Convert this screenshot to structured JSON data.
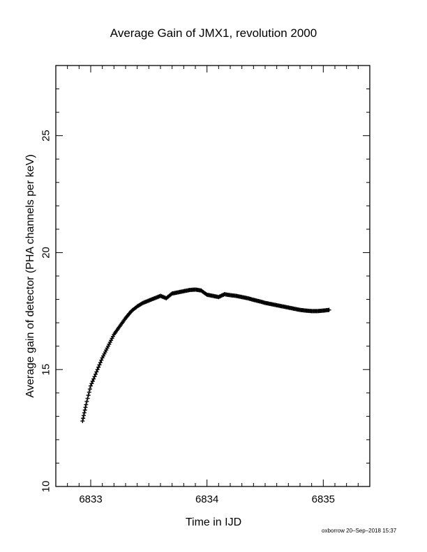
{
  "chart_data": {
    "type": "scatter",
    "title": "Average Gain of JMX1, revolution 2000",
    "xlabel": "Time in IJD",
    "ylabel": "Average gain of detector (PHA channels per keV)",
    "xlim": [
      6832.7,
      6835.4
    ],
    "ylim": [
      10,
      28
    ],
    "xticks": [
      "6833",
      "6834",
      "6835"
    ],
    "yticks": [
      "10",
      "15",
      "20",
      "25"
    ],
    "grid": false,
    "marker": "+",
    "color": "#000000",
    "series": [
      {
        "x": [
          6832.93,
          6832.96,
          6833.0,
          6833.05,
          6833.1,
          6833.15,
          6833.2,
          6833.25,
          6833.3,
          6833.35,
          6833.4,
          6833.45,
          6833.5,
          6833.55,
          6833.6,
          6833.65,
          6833.7,
          6833.75,
          6833.8,
          6833.85,
          6833.9,
          6833.95,
          6834.0,
          6834.05,
          6834.1,
          6834.15,
          6834.2,
          6834.25,
          6834.3,
          6834.35,
          6834.4,
          6834.45,
          6834.5,
          6834.55,
          6834.6,
          6834.65,
          6834.7,
          6834.75,
          6834.8,
          6834.85,
          6834.9,
          6834.95,
          6835.0,
          6835.05
        ],
        "y": [
          12.8,
          13.5,
          14.3,
          14.9,
          15.5,
          16.0,
          16.5,
          16.85,
          17.2,
          17.5,
          17.7,
          17.85,
          17.95,
          18.05,
          18.15,
          18.05,
          18.25,
          18.3,
          18.35,
          18.4,
          18.42,
          18.38,
          18.2,
          18.15,
          18.1,
          18.22,
          18.18,
          18.15,
          18.1,
          18.05,
          17.98,
          17.92,
          17.85,
          17.8,
          17.75,
          17.7,
          17.65,
          17.6,
          17.55,
          17.52,
          17.5,
          17.5,
          17.52,
          17.55
        ]
      }
    ]
  },
  "footer": {
    "credit": "oxborrow 20–Sep–2018 15:37"
  }
}
